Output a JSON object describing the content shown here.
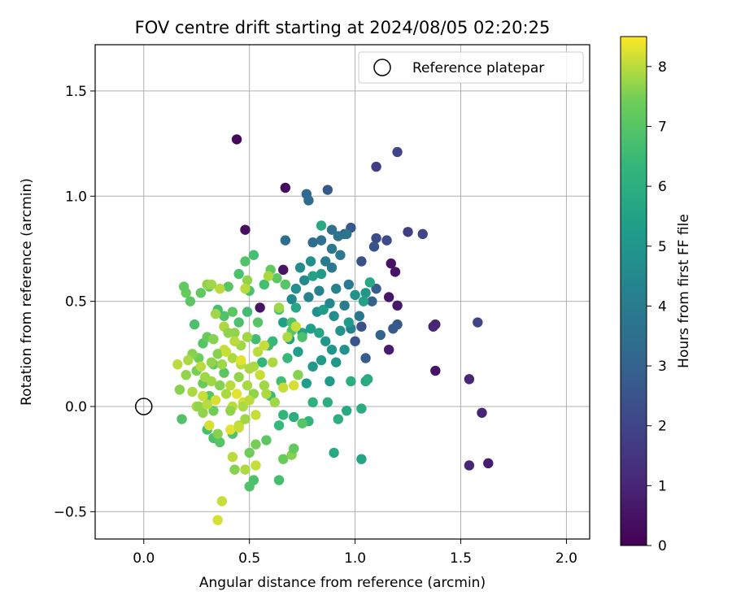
{
  "chart_data": {
    "type": "scatter",
    "title": "FOV centre drift starting at 2024/08/05 02:20:25",
    "xlabel": "Angular distance from reference (arcmin)",
    "ylabel": "Rotation from reference (arcmin)",
    "xlim": [
      -0.23,
      2.11
    ],
    "ylim": [
      -0.63,
      1.72
    ],
    "x_ticks": [
      0.0,
      0.5,
      1.0,
      1.5,
      2.0
    ],
    "x_tick_labels": [
      "0.0",
      "0.5",
      "1.0",
      "1.5",
      "2.0"
    ],
    "y_ticks": [
      -0.5,
      0.0,
      0.5,
      1.0,
      1.5
    ],
    "y_tick_labels": [
      "−0.5",
      "0.0",
      "0.5",
      "1.0",
      "1.5"
    ],
    "grid": true,
    "legend": {
      "placement": "top-right",
      "entries": [
        "Reference platepar"
      ]
    },
    "colorbar": {
      "label": "Hours from first FF file",
      "min": 0,
      "max": 8.5,
      "colormap": "viridis",
      "ticks": [
        0,
        1,
        2,
        3,
        4,
        5,
        6,
        7,
        8
      ],
      "tick_labels": [
        "0",
        "1",
        "2",
        "3",
        "4",
        "5",
        "6",
        "7",
        "8"
      ]
    },
    "reference_point": {
      "x": 0.0,
      "y": 0.0
    },
    "series": [
      {
        "points": [
          [
            0.44,
            1.27
          ],
          [
            0.67,
            1.04
          ],
          [
            0.48,
            0.84
          ],
          [
            0.55,
            0.47
          ],
          [
            0.66,
            0.65
          ],
          [
            1.17,
            0.68
          ],
          [
            1.19,
            0.64
          ],
          [
            1.16,
            0.52
          ],
          [
            1.2,
            0.48
          ],
          [
            1.16,
            0.27
          ],
          [
            1.38,
            0.39
          ],
          [
            1.37,
            0.38
          ],
          [
            1.38,
            0.17
          ],
          [
            1.54,
            0.13
          ],
          [
            1.6,
            -0.03
          ],
          [
            1.54,
            -0.28
          ],
          [
            1.63,
            -0.27
          ],
          [
            1.1,
            1.14
          ],
          [
            1.2,
            1.21
          ],
          [
            1.25,
            0.83
          ],
          [
            1.32,
            0.82
          ],
          [
            1.58,
            0.4
          ],
          [
            1.1,
            0.8
          ],
          [
            1.09,
            0.76
          ],
          [
            1.15,
            0.79
          ],
          [
            0.98,
            0.85
          ],
          [
            0.95,
            0.82
          ],
          [
            1.03,
            0.69
          ],
          [
            1.1,
            0.56
          ],
          [
            1.2,
            0.39
          ],
          [
            1.18,
            0.37
          ],
          [
            1.05,
            0.23
          ],
          [
            1.12,
            0.34
          ],
          [
            1.08,
            0.5
          ],
          [
            0.87,
            1.03
          ],
          [
            1.0,
            0.31
          ],
          [
            1.03,
            0.38
          ]
        ],
        "hours": [
          0.2,
          0.3,
          0.4,
          0.5,
          0.5,
          0.5,
          0.5,
          0.6,
          0.6,
          0.8,
          1.0,
          1.0,
          0.5,
          1.0,
          1.0,
          1.0,
          0.8,
          1.8,
          2.0,
          1.8,
          2.0,
          2.0,
          2.2,
          2.4,
          2.2,
          2.6,
          2.5,
          2.4,
          2.8,
          2.6,
          2.7,
          2.8,
          3.0,
          3.0,
          2.6,
          2.5,
          2.4
        ]
      },
      {
        "points": [
          [
            0.77,
            1.01
          ],
          [
            0.78,
            0.98
          ],
          [
            0.67,
            0.79
          ],
          [
            0.8,
            0.78
          ],
          [
            0.84,
            0.79
          ],
          [
            0.89,
            0.84
          ],
          [
            0.92,
            0.81
          ],
          [
            0.96,
            0.82
          ],
          [
            0.89,
            0.75
          ],
          [
            0.93,
            0.72
          ],
          [
            0.86,
            0.69
          ],
          [
            0.89,
            0.66
          ],
          [
            0.97,
            0.58
          ],
          [
            0.91,
            0.56
          ],
          [
            0.95,
            0.48
          ],
          [
            0.88,
            0.49
          ],
          [
            0.83,
            0.55
          ],
          [
            0.78,
            0.52
          ],
          [
            0.76,
            0.6
          ],
          [
            0.74,
            0.66
          ],
          [
            0.79,
            0.69
          ],
          [
            0.72,
            0.56
          ],
          [
            0.7,
            0.51
          ],
          [
            0.82,
            0.45
          ],
          [
            0.9,
            0.43
          ],
          [
            0.93,
            0.36
          ],
          [
            0.86,
            0.31
          ],
          [
            0.89,
            0.27
          ],
          [
            0.84,
            0.22
          ],
          [
            0.8,
            0.19
          ],
          [
            0.88,
            0.12
          ],
          [
            0.77,
            0.11
          ],
          [
            0.73,
            0.26
          ],
          [
            0.69,
            0.32
          ],
          [
            0.66,
            0.4
          ],
          [
            0.75,
            0.35
          ],
          [
            0.83,
            0.35
          ],
          [
            0.98,
            0.37
          ],
          [
            1.02,
            0.43
          ],
          [
            1.0,
            0.53
          ],
          [
            1.05,
            0.54
          ],
          [
            0.84,
            0.63
          ],
          [
            0.8,
            0.62
          ],
          [
            0.72,
            0.47
          ],
          [
            0.97,
            0.4
          ],
          [
            0.95,
            0.27
          ],
          [
            0.91,
            0.21
          ],
          [
            0.79,
            0.37
          ],
          [
            0.85,
            0.46
          ]
        ],
        "hours": [
          3.2,
          3.4,
          3.4,
          3.4,
          3.6,
          3.5,
          3.6,
          3.7,
          3.8,
          3.9,
          4.0,
          3.8,
          3.9,
          4.2,
          4.0,
          4.4,
          4.3,
          4.3,
          4.5,
          4.6,
          4.8,
          4.7,
          4.5,
          4.8,
          4.7,
          4.9,
          5.0,
          5.0,
          5.2,
          5.1,
          5.2,
          5.3,
          5.3,
          5.4,
          5.4,
          5.5,
          5.6,
          4.2,
          3.8,
          4.8,
          5.0,
          5.2,
          5.5,
          5.7,
          5.2,
          4.9,
          5.1,
          5.4,
          5.3
        ]
      },
      {
        "points": [
          [
            0.84,
            0.86
          ],
          [
            1.04,
            0.5
          ],
          [
            1.07,
            0.59
          ],
          [
            1.05,
            0.12
          ],
          [
            1.06,
            0.13
          ],
          [
            0.98,
            0.12
          ],
          [
            0.96,
            -0.02
          ],
          [
            1.03,
            -0.01
          ],
          [
            0.9,
            -0.22
          ],
          [
            1.03,
            -0.25
          ],
          [
            0.87,
            0.02
          ],
          [
            0.92,
            -0.06
          ],
          [
            0.8,
            0.02
          ],
          [
            0.78,
            -0.07
          ],
          [
            0.71,
            -0.05
          ],
          [
            0.66,
            -0.04
          ],
          [
            0.64,
            -0.09
          ],
          [
            0.6,
            0.05
          ],
          [
            0.56,
            0.21
          ],
          [
            0.61,
            0.31
          ],
          [
            0.65,
            0.12
          ],
          [
            0.68,
            0.23
          ],
          [
            0.59,
            0.29
          ],
          [
            0.53,
            0.32
          ],
          [
            0.5,
            0.55
          ],
          [
            0.52,
            0.72
          ],
          [
            0.48,
            0.69
          ],
          [
            0.45,
            0.63
          ],
          [
            0.4,
            0.57
          ],
          [
            0.31,
            0.57
          ],
          [
            0.27,
            0.54
          ],
          [
            0.2,
            0.54
          ],
          [
            0.22,
            0.5
          ],
          [
            0.24,
            0.39
          ],
          [
            0.28,
            0.3
          ],
          [
            0.33,
            0.2
          ],
          [
            0.38,
            0.16
          ],
          [
            0.28,
            0.11
          ],
          [
            0.31,
            0.05
          ],
          [
            0.33,
            -0.02
          ],
          [
            0.18,
            -0.06
          ],
          [
            0.3,
            -0.11
          ],
          [
            0.33,
            -0.15
          ],
          [
            0.36,
            -0.17
          ],
          [
            0.42,
            -0.13
          ],
          [
            0.43,
            -0.3
          ],
          [
            0.5,
            -0.22
          ],
          [
            0.53,
            -0.18
          ],
          [
            0.52,
            -0.35
          ],
          [
            0.5,
            -0.38
          ],
          [
            0.64,
            -0.35
          ],
          [
            0.58,
            -0.16
          ],
          [
            0.66,
            -0.25
          ],
          [
            0.7,
            -0.23
          ],
          [
            0.71,
            -0.2
          ],
          [
            0.75,
            -0.08
          ],
          [
            0.7,
            0.36
          ],
          [
            0.75,
            0.33
          ],
          [
            0.64,
            0.46
          ],
          [
            0.57,
            0.58
          ],
          [
            0.6,
            0.65
          ],
          [
            0.63,
            0.61
          ],
          [
            0.67,
            0.58
          ],
          [
            0.7,
            0.4
          ],
          [
            0.54,
            0.4
          ],
          [
            0.45,
            0.4
          ],
          [
            0.42,
            0.45
          ],
          [
            0.38,
            0.43
          ],
          [
            0.35,
            0.46
          ],
          [
            0.3,
            0.33
          ],
          [
            0.26,
            0.23
          ],
          [
            0.23,
            0.25
          ],
          [
            0.25,
            0.17
          ],
          [
            0.19,
            0.57
          ],
          [
            0.49,
            0.45
          ]
        ],
        "hours": [
          5.8,
          5.5,
          5.7,
          5.8,
          5.9,
          6.0,
          5.8,
          5.9,
          5.8,
          5.6,
          6.0,
          6.0,
          6.1,
          6.2,
          6.0,
          6.3,
          6.4,
          6.5,
          6.3,
          6.4,
          6.6,
          6.4,
          6.5,
          6.6,
          6.8,
          6.7,
          6.9,
          6.8,
          7.0,
          7.1,
          7.2,
          7.3,
          7.1,
          6.8,
          7.0,
          7.2,
          7.1,
          7.3,
          7.0,
          7.4,
          6.9,
          6.7,
          6.8,
          7.0,
          6.9,
          7.6,
          7.4,
          7.5,
          6.8,
          6.9,
          6.7,
          7.1,
          7.3,
          7.6,
          7.2,
          7.0,
          7.0,
          6.8,
          6.8,
          6.7,
          7.2,
          7.1,
          7.0,
          6.9,
          7.0,
          6.8,
          7.1,
          6.9,
          6.7,
          7.3,
          7.4,
          7.6,
          7.5,
          7.2,
          6.6
        ]
      },
      {
        "points": [
          [
            0.36,
            0.56
          ],
          [
            0.3,
            0.58
          ],
          [
            0.34,
            0.44
          ],
          [
            0.38,
            0.38
          ],
          [
            0.43,
            0.35
          ],
          [
            0.46,
            0.29
          ],
          [
            0.42,
            0.23
          ],
          [
            0.38,
            0.27
          ],
          [
            0.35,
            0.25
          ],
          [
            0.32,
            0.21
          ],
          [
            0.46,
            0.2
          ],
          [
            0.5,
            0.18
          ],
          [
            0.55,
            0.15
          ],
          [
            0.57,
            0.1
          ],
          [
            0.52,
            0.06
          ],
          [
            0.47,
            0.02
          ],
          [
            0.42,
            0.0
          ],
          [
            0.39,
            0.06
          ],
          [
            0.36,
            0.1
          ],
          [
            0.32,
            0.12
          ],
          [
            0.28,
            0.05
          ],
          [
            0.25,
            0.0
          ],
          [
            0.28,
            -0.03
          ],
          [
            0.31,
            -0.09
          ],
          [
            0.35,
            -0.13
          ],
          [
            0.41,
            -0.11
          ],
          [
            0.45,
            -0.09
          ],
          [
            0.48,
            -0.06
          ],
          [
            0.53,
            -0.04
          ],
          [
            0.49,
            0.1
          ],
          [
            0.45,
            0.14
          ],
          [
            0.41,
            0.1
          ],
          [
            0.58,
            0.06
          ],
          [
            0.62,
            0.02
          ],
          [
            0.66,
            0.09
          ],
          [
            0.71,
            0.1
          ],
          [
            0.73,
            0.15
          ],
          [
            0.61,
            0.21
          ],
          [
            0.54,
            0.26
          ],
          [
            0.57,
            0.29
          ],
          [
            0.49,
            0.33
          ],
          [
            0.43,
            0.31
          ],
          [
            0.4,
            0.35
          ],
          [
            0.46,
            0.22
          ],
          [
            0.68,
            0.33
          ],
          [
            0.72,
            0.38
          ],
          [
            0.64,
            0.47
          ],
          [
            0.59,
            0.62
          ],
          [
            0.49,
            0.6
          ],
          [
            0.48,
            0.56
          ],
          [
            0.32,
            0.58
          ],
          [
            0.16,
            0.2
          ],
          [
            0.2,
            0.15
          ],
          [
            0.17,
            0.08
          ],
          [
            0.21,
            0.22
          ],
          [
            0.37,
            -0.45
          ],
          [
            0.35,
            -0.54
          ],
          [
            0.42,
            -0.24
          ],
          [
            0.48,
            -0.3
          ],
          [
            0.53,
            -0.28
          ],
          [
            0.26,
            0.0
          ],
          [
            0.3,
            0.01
          ],
          [
            0.23,
            0.07
          ],
          [
            0.33,
            0.32
          ],
          [
            0.39,
            0.26
          ],
          [
            0.29,
            0.14
          ],
          [
            0.44,
            0.06
          ],
          [
            0.47,
            0.0
          ],
          [
            0.5,
            0.03
          ],
          [
            0.34,
            0.03
          ],
          [
            0.41,
            -0.02
          ],
          [
            0.37,
            0.2
          ],
          [
            0.27,
            0.19
          ],
          [
            0.45,
            -0.1
          ],
          [
            0.52,
            0.19
          ]
        ],
        "hours": [
          8.0,
          7.7,
          7.8,
          7.9,
          7.7,
          7.8,
          7.9,
          8.1,
          7.6,
          7.7,
          8.0,
          7.9,
          8.1,
          7.8,
          7.7,
          8.2,
          8.0,
          7.9,
          7.6,
          7.8,
          8.1,
          7.9,
          7.7,
          8.2,
          7.6,
          8.3,
          8.0,
          7.8,
          8.1,
          7.9,
          7.7,
          8.0,
          7.9,
          7.8,
          8.1,
          8.2,
          7.6,
          7.9,
          8.0,
          8.1,
          7.8,
          8.0,
          7.7,
          8.3,
          7.9,
          8.1,
          7.8,
          7.9,
          7.7,
          8.0,
          7.8,
          8.0,
          7.7,
          7.6,
          7.9,
          8.1,
          8.2,
          8.0,
          7.9,
          8.1,
          7.7,
          8.0,
          7.9,
          7.6,
          8.1,
          7.8,
          8.3,
          7.9,
          8.0,
          8.2,
          7.7,
          7.8,
          8.0,
          8.1,
          7.9
        ]
      }
    ]
  }
}
